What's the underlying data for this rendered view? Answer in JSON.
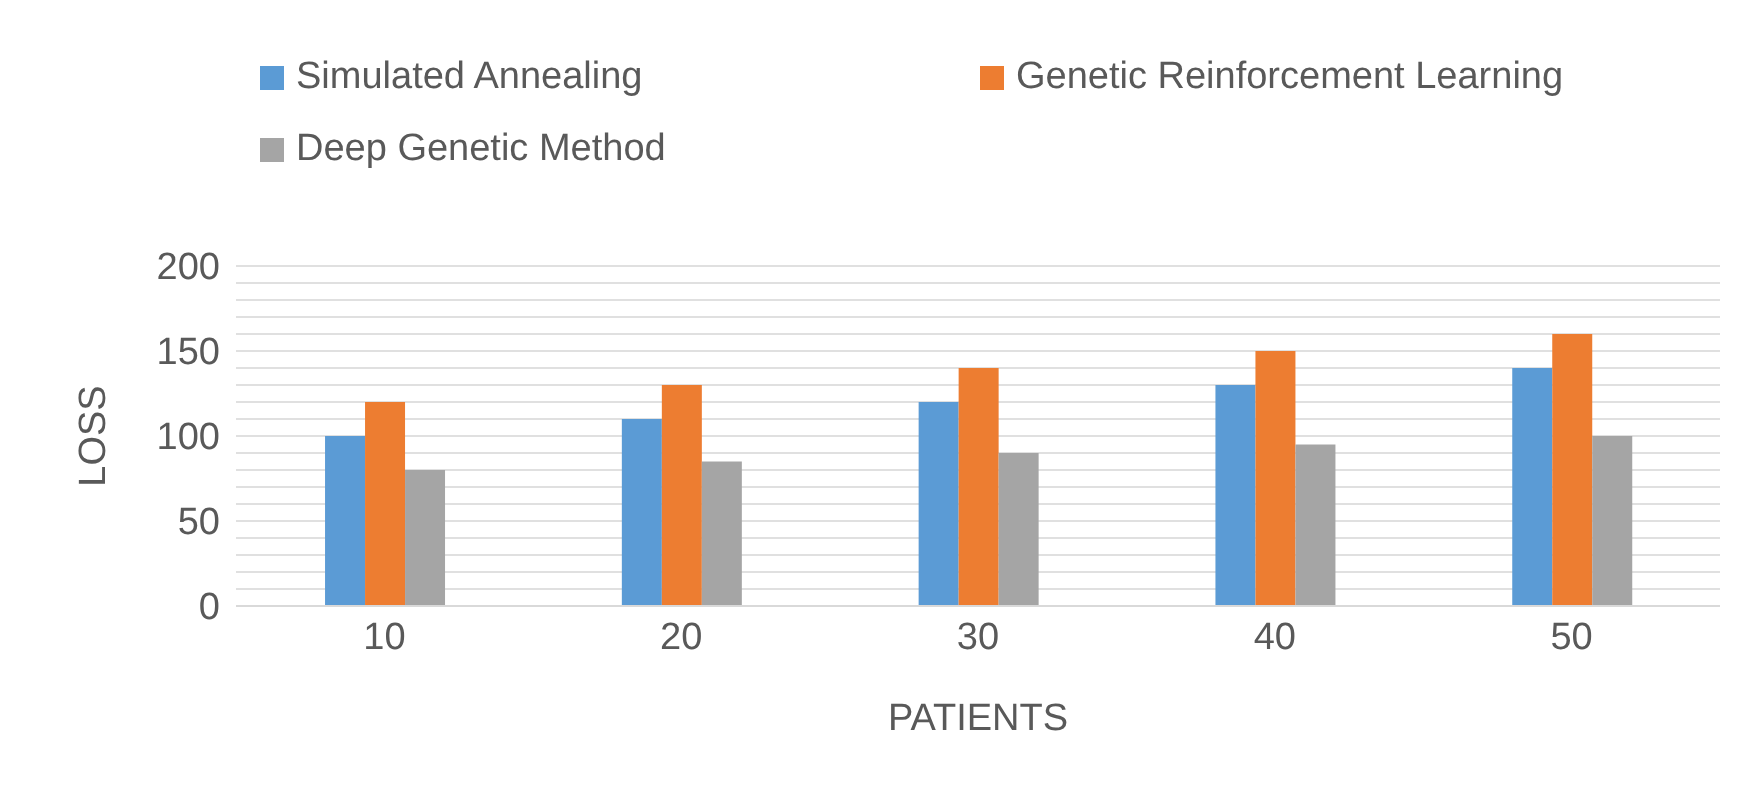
{
  "chart_data": {
    "type": "bar",
    "xlabel": "PATIENTS",
    "ylabel": "LOSS",
    "categories": [
      "10",
      "20",
      "30",
      "40",
      "50"
    ],
    "series": [
      {
        "name": "Simulated Annealing",
        "color": "#5b9bd5",
        "values": [
          100,
          110,
          120,
          130,
          140
        ]
      },
      {
        "name": "Genetic Reinforcement Learning",
        "color": "#ed7d31",
        "values": [
          120,
          130,
          140,
          150,
          160
        ]
      },
      {
        "name": "Deep Genetic Method",
        "color": "#a5a5a5",
        "values": [
          80,
          85,
          90,
          95,
          100
        ]
      }
    ],
    "ylim": [
      0,
      200
    ],
    "yticks": [
      0,
      {
        "value": 10,
        "label": null
      },
      {
        "value": 20,
        "label": null
      },
      {
        "value": 30,
        "label": null
      },
      {
        "value": 40,
        "label": null
      },
      50,
      {
        "value": 60,
        "label": null
      },
      {
        "value": 70,
        "label": null
      },
      {
        "value": 80,
        "label": null
      },
      {
        "value": 90,
        "label": null
      },
      100,
      {
        "value": 110,
        "label": null
      },
      {
        "value": 120,
        "label": null
      },
      {
        "value": 130,
        "label": null
      },
      {
        "value": 140,
        "label": null
      },
      150,
      {
        "value": 160,
        "label": null
      },
      {
        "value": 170,
        "label": null
      },
      {
        "value": 180,
        "label": null
      },
      {
        "value": 190,
        "label": null
      },
      200
    ],
    "grid": "y",
    "legend": "top"
  }
}
